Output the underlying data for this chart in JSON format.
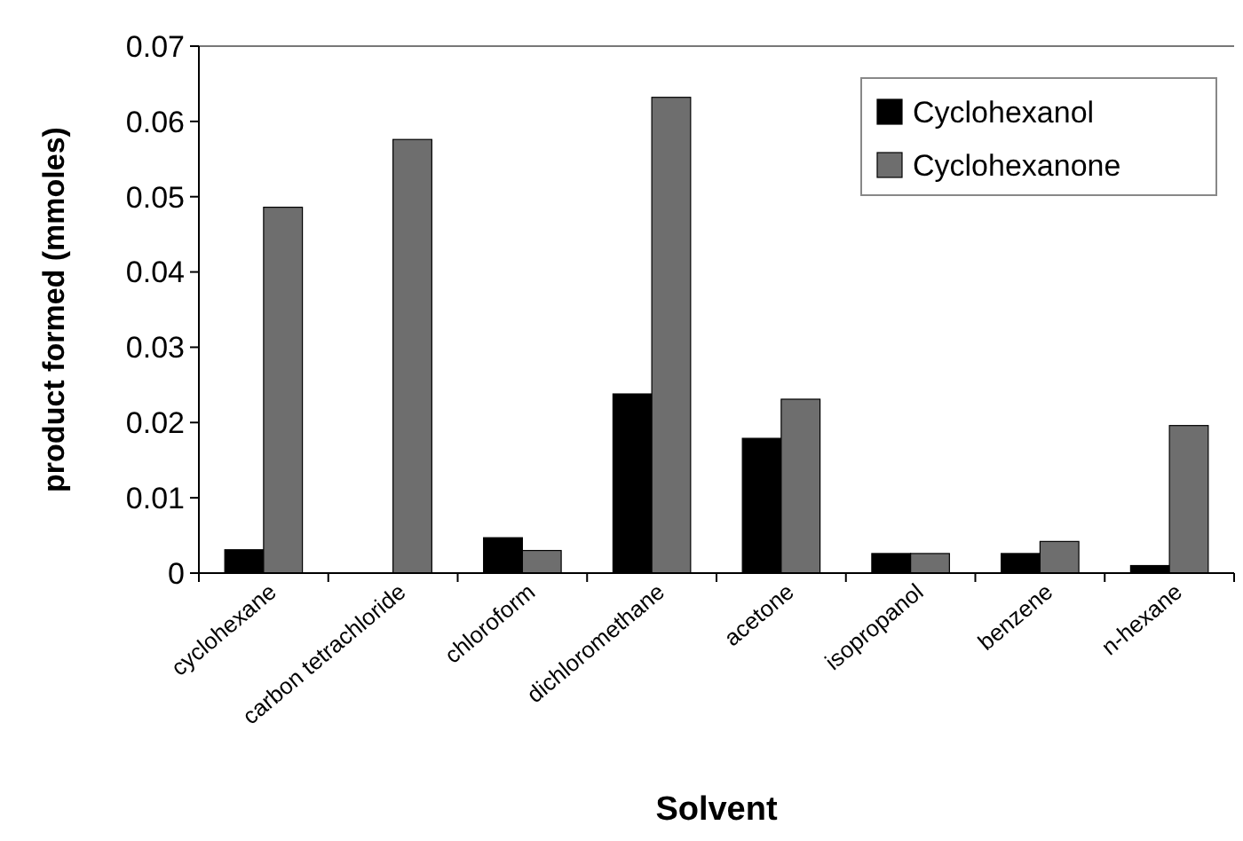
{
  "chart_data": {
    "type": "bar",
    "xlabel": "Solvent",
    "ylabel": "product formed (mmoles)",
    "categories": [
      "cyclohexane",
      "carbon tetrachloride",
      "chloroform",
      "dichloromethane",
      "acetone",
      "isopropanol",
      "benzene",
      "n-hexane"
    ],
    "series": [
      {
        "name": "Cyclohexanol",
        "color": "#000000",
        "values": [
          0.0031,
          0,
          0.0047,
          0.0238,
          0.0179,
          0.0026,
          0.0026,
          0.001
        ]
      },
      {
        "name": "Cyclohexanone",
        "color": "#6e6e6e",
        "values": [
          0.0486,
          0.0576,
          0.003,
          0.0632,
          0.0231,
          0.0026,
          0.0042,
          0.0196
        ]
      }
    ],
    "ylim": [
      0,
      0.07
    ],
    "yticks": [
      0,
      0.01,
      0.02,
      0.03,
      0.04,
      0.05,
      0.06,
      0.07
    ],
    "grid": false,
    "legend": "top right"
  }
}
